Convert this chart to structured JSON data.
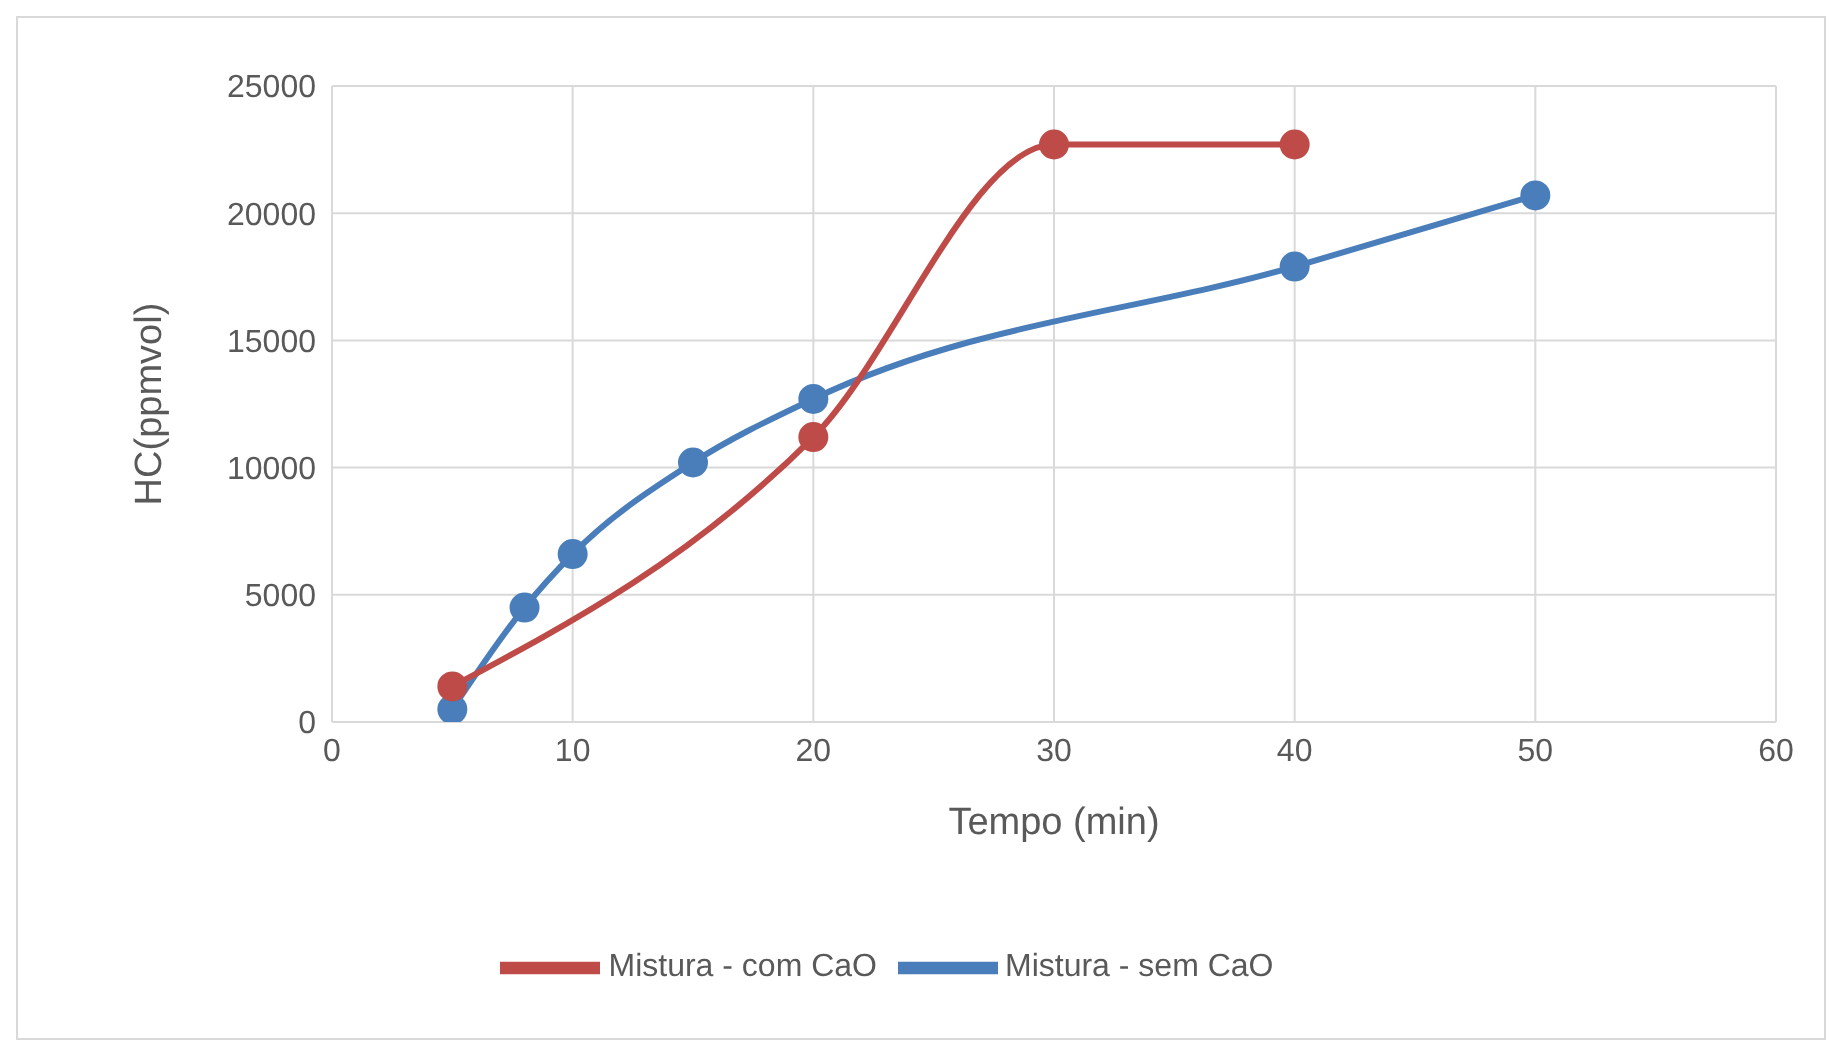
{
  "chart_data": {
    "type": "line",
    "xlabel": "Tempo (min)",
    "ylabel": "HC(ppmvol)",
    "xlim": [
      0,
      60
    ],
    "xticks": [
      0,
      10,
      20,
      30,
      40,
      50,
      60
    ],
    "ylim": [
      0,
      25000
    ],
    "yticks": [
      0,
      5000,
      10000,
      15000,
      20000,
      25000
    ],
    "grid": true,
    "legend": "bottom",
    "marker": "circle",
    "line_style": "solid",
    "series": [
      {
        "name": "Mistura - sem CaO",
        "color": "#4a7ebb",
        "x": [
          5,
          8,
          10,
          15,
          20,
          40,
          50
        ],
        "values": [
          500,
          4500,
          6600,
          10200,
          12700,
          17900,
          20700
        ]
      },
      {
        "name": "Mistura - com CaO",
        "color": "#be4b48",
        "x": [
          5,
          20,
          30,
          40
        ],
        "values": [
          1400,
          11200,
          22700,
          22700
        ]
      }
    ]
  }
}
